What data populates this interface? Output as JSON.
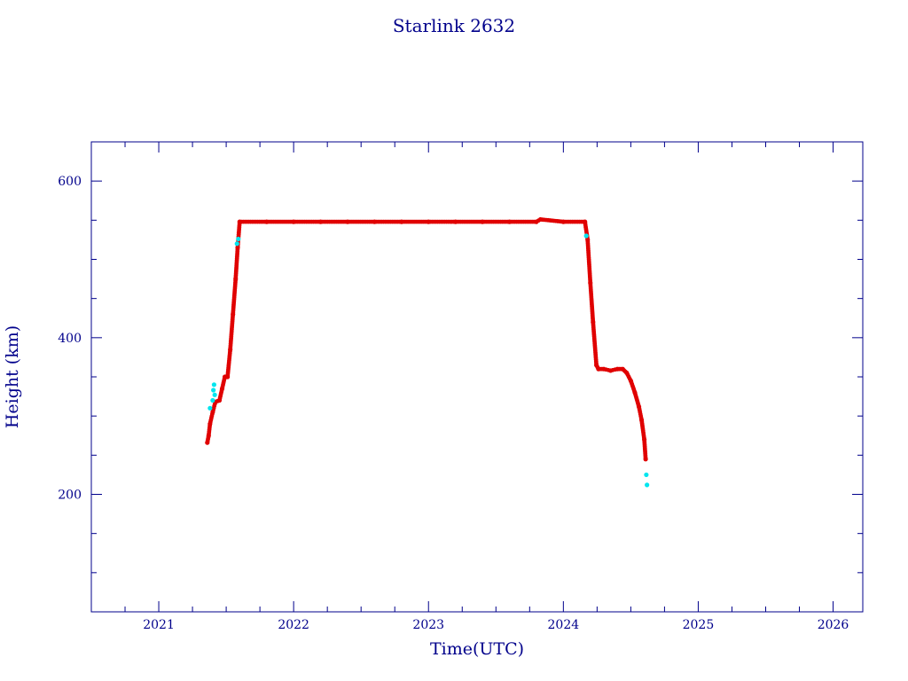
{
  "chart_data": {
    "type": "scatter",
    "title": "Starlink 2632",
    "xlabel": "Time(UTC)",
    "ylabel": "Height (km)",
    "xlim": [
      2020.5,
      2026.22
    ],
    "ylim": [
      50,
      650
    ],
    "x_ticks": [
      2021,
      2022,
      2023,
      2024,
      2025,
      2026
    ],
    "x_tick_labels": [
      "2021",
      "2022",
      "2023",
      "2024",
      "2025",
      "2026"
    ],
    "y_ticks": [
      200,
      400,
      600
    ],
    "y_tick_labels": [
      "200",
      "400",
      "600"
    ],
    "grid": false,
    "series": [
      {
        "color": "#e00000",
        "points": [
          [
            2021.36,
            266
          ],
          [
            2021.37,
            275
          ],
          [
            2021.38,
            290
          ],
          [
            2021.4,
            305
          ],
          [
            2021.42,
            318
          ],
          [
            2021.45,
            320
          ],
          [
            2021.47,
            335
          ],
          [
            2021.49,
            350
          ],
          [
            2021.51,
            350
          ],
          [
            2021.53,
            385
          ],
          [
            2021.55,
            430
          ],
          [
            2021.57,
            475
          ],
          [
            2021.585,
            515
          ],
          [
            2021.6,
            548
          ],
          [
            2021.8,
            548
          ],
          [
            2022.0,
            548
          ],
          [
            2022.2,
            548
          ],
          [
            2022.4,
            548
          ],
          [
            2022.6,
            548
          ],
          [
            2022.8,
            548
          ],
          [
            2023.0,
            548
          ],
          [
            2023.2,
            548
          ],
          [
            2023.4,
            548
          ],
          [
            2023.6,
            548
          ],
          [
            2023.8,
            548
          ],
          [
            2023.83,
            551
          ],
          [
            2024.0,
            548
          ],
          [
            2024.16,
            548
          ],
          [
            2024.18,
            525
          ],
          [
            2024.2,
            470
          ],
          [
            2024.22,
            420
          ],
          [
            2024.245,
            365
          ],
          [
            2024.26,
            360
          ],
          [
            2024.3,
            360
          ],
          [
            2024.35,
            358
          ],
          [
            2024.4,
            360
          ],
          [
            2024.44,
            360
          ],
          [
            2024.47,
            355
          ],
          [
            2024.5,
            345
          ],
          [
            2024.53,
            330
          ],
          [
            2024.56,
            312
          ],
          [
            2024.58,
            295
          ],
          [
            2024.6,
            270
          ],
          [
            2024.61,
            245
          ]
        ]
      },
      {
        "color": "#00e5ee",
        "points": [
          [
            2021.38,
            310
          ],
          [
            2021.4,
            320
          ],
          [
            2021.405,
            333
          ],
          [
            2021.41,
            340
          ],
          [
            2021.415,
            327
          ],
          [
            2021.58,
            520
          ],
          [
            2021.59,
            526
          ],
          [
            2024.17,
            530
          ],
          [
            2024.615,
            225
          ],
          [
            2024.62,
            212
          ]
        ]
      }
    ]
  }
}
